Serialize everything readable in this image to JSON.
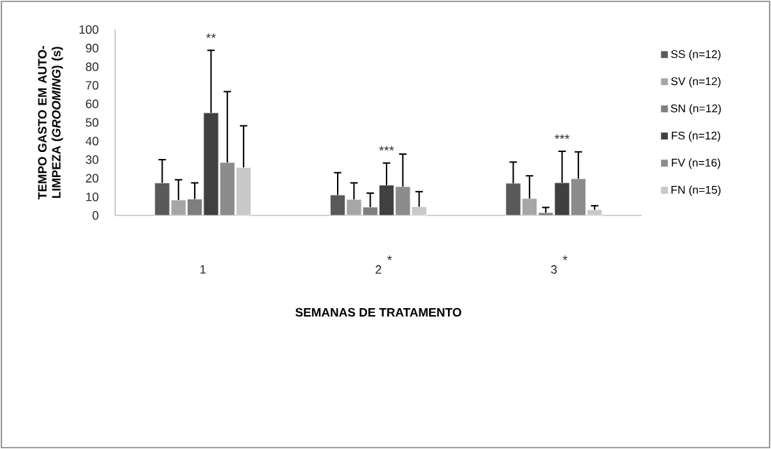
{
  "chart_data": {
    "type": "bar",
    "xlabel": "SEMANAS DE TRATAMENTO",
    "ylabel": "TEMPO GASTO EM AUTO-LIMPEZA (*GROOMING*) (s)",
    "categories": [
      "1",
      "2",
      "3"
    ],
    "series": [
      {
        "name": "SS (n=12)",
        "color": "#595959",
        "values": [
          17.5,
          11,
          17.3
        ],
        "errors": [
          12.5,
          12,
          11.4
        ]
      },
      {
        "name": "SV (n=12)",
        "color": "#a6a6a6",
        "values": [
          8.3,
          8.6,
          9.1
        ],
        "errors": [
          10.9,
          8.9,
          12.2
        ]
      },
      {
        "name": "SN (n=12)",
        "color": "#7f7f7f",
        "values": [
          8.8,
          4.5,
          1.5
        ],
        "errors": [
          8.7,
          7.5,
          2.8
        ]
      },
      {
        "name": "FS (n=12)",
        "color": "#404040",
        "values": [
          55.2,
          16.3,
          17.6
        ],
        "errors": [
          33.6,
          11.9,
          16.9
        ]
      },
      {
        "name": "FV (n=16)",
        "color": "#8c8c8c",
        "values": [
          28.5,
          15.5,
          19.8
        ],
        "errors": [
          38.1,
          17.5,
          14.4
        ]
      },
      {
        "name": "FN (n=15)",
        "color": "#c8c8c8",
        "values": [
          25.8,
          4.7,
          3.1
        ],
        "errors": [
          22.4,
          8.1,
          2.1
        ]
      }
    ],
    "annotations": [
      "**",
      "***",
      "***",
      "*",
      "*"
    ],
    "ylim": [
      0,
      100
    ],
    "yticks": [
      0,
      10,
      20,
      30,
      40,
      50,
      60,
      70,
      80,
      90,
      100
    ],
    "legend": "right",
    "grid": false
  }
}
